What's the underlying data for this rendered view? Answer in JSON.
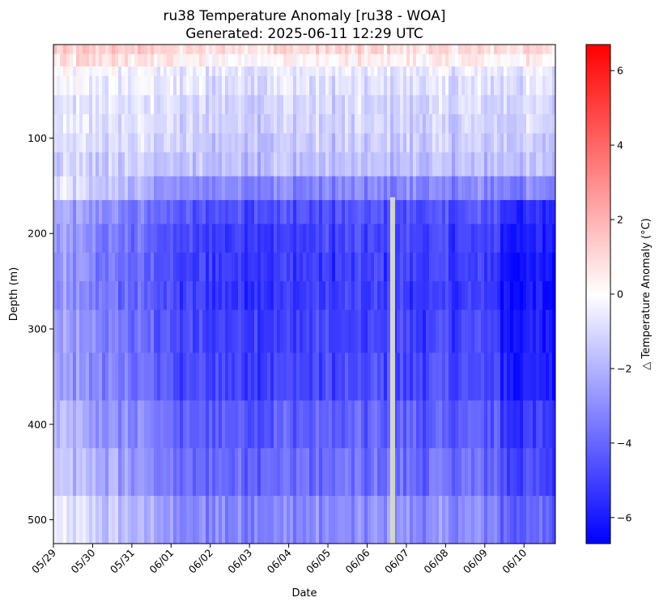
{
  "chart_data": {
    "type": "heatmap",
    "title": "ru38 Temperature Anomaly [ru38 - WOA]",
    "subtitle": "Generated: 2025-06-11 12:29 UTC",
    "xlabel": "Date",
    "ylabel": "Depth (m)",
    "x_tick_labels": [
      "05/29",
      "05/30",
      "05/31",
      "06/01",
      "06/02",
      "06/03",
      "06/04",
      "06/05",
      "06/06",
      "06/07",
      "06/08",
      "06/09",
      "06/10"
    ],
    "x_range_days": [
      0,
      12.8
    ],
    "y_ticks": [
      100,
      200,
      300,
      400,
      500
    ],
    "ylim": [
      525,
      2
    ],
    "y_inverted": true,
    "depth_bins": [
      [
        2,
        12,
        0.9
      ],
      [
        12,
        25,
        0.3
      ],
      [
        25,
        35,
        -0.6
      ],
      [
        35,
        55,
        -0.8
      ],
      [
        55,
        75,
        -1.1
      ],
      [
        75,
        95,
        -1.2
      ],
      [
        95,
        115,
        -1.4
      ],
      [
        115,
        140,
        -1.7
      ],
      [
        140,
        165,
        -3.2
      ],
      [
        165,
        190,
        -4.6
      ],
      [
        190,
        220,
        -5.0
      ],
      [
        220,
        250,
        -5.1
      ],
      [
        250,
        280,
        -5.2
      ],
      [
        280,
        325,
        -5.0
      ],
      [
        325,
        375,
        -4.9
      ],
      [
        375,
        425,
        -4.3
      ],
      [
        425,
        475,
        -3.9
      ],
      [
        475,
        525,
        -3.1
      ]
    ],
    "no_data_gap": {
      "x_day": 8.65,
      "depth_from": 162,
      "depth_to": 525
    },
    "colorbar": {
      "label": "△ Temperature Anomaly (°C)",
      "ticks": [
        -6,
        -4,
        -2,
        0,
        2,
        4,
        6
      ],
      "tick_labels": [
        "−6",
        "−4",
        "−2",
        "0",
        "2",
        "4",
        "6"
      ],
      "range": [
        -6.7,
        6.7
      ],
      "colormap": "bwr",
      "low_color": "#0000ff",
      "mid_color": "#ffffff",
      "high_color": "#ff0000",
      "missing_color": "#d3d3d3"
    }
  }
}
